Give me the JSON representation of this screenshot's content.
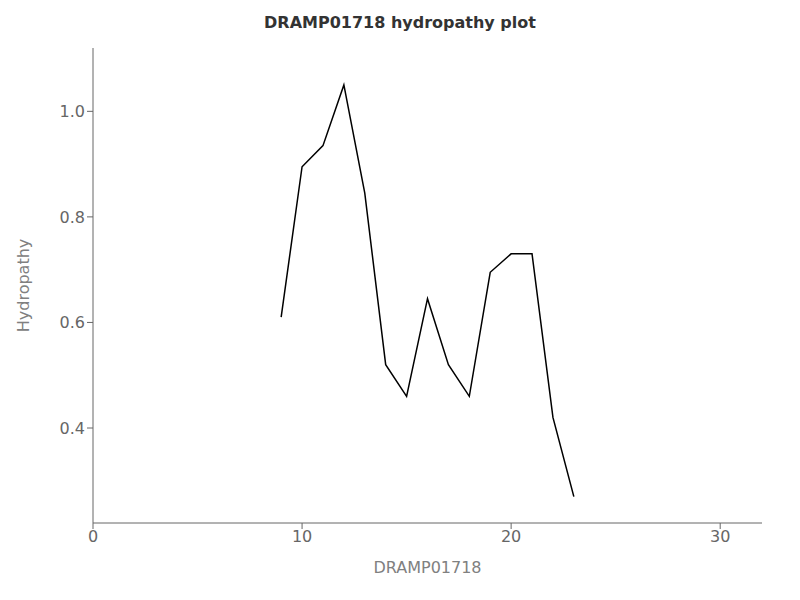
{
  "chart_data": {
    "type": "line",
    "title": "DRAMP01718 hydropathy plot",
    "xlabel": "DRAMP01718",
    "ylabel": "Hydropathy",
    "x": [
      9,
      10,
      11,
      12,
      13,
      14,
      15,
      16,
      17,
      18,
      19,
      20,
      21,
      22,
      23
    ],
    "values": [
      0.61,
      0.895,
      0.935,
      1.05,
      0.845,
      0.52,
      0.46,
      0.645,
      0.52,
      0.46,
      0.695,
      0.73,
      0.73,
      0.42,
      0.27
    ],
    "color": "#000000",
    "xlim": [
      0,
      32
    ],
    "ylim": [
      0.22,
      1.12
    ],
    "xticks": [
      0,
      10,
      20,
      30
    ],
    "yticks": [
      0.4,
      0.6,
      0.8,
      {
        "value": 1,
        "label": "1.0"
      }
    ],
    "grid": false
  }
}
